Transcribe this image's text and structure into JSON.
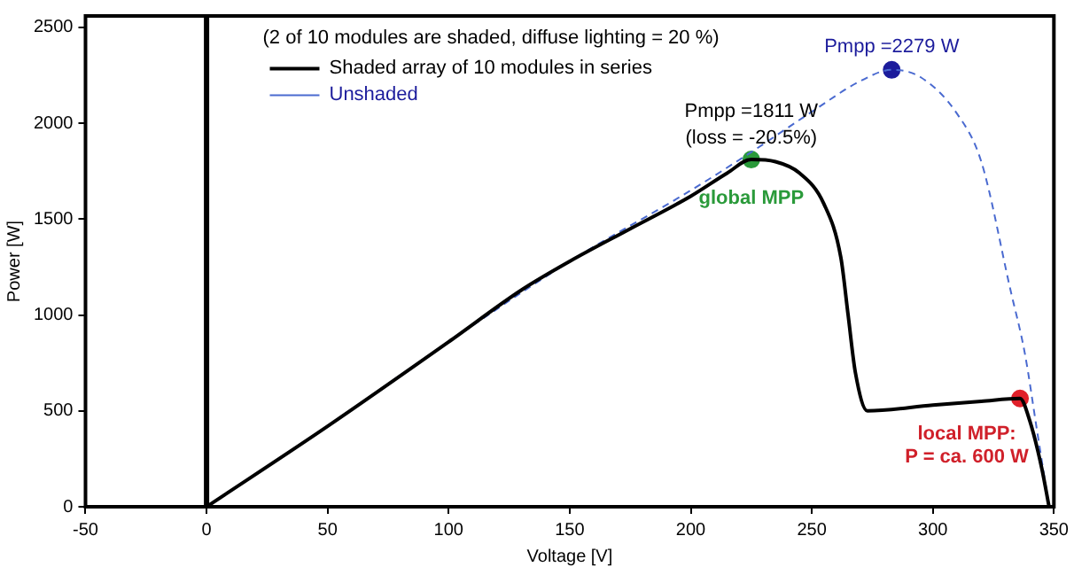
{
  "chart_data": {
    "type": "line",
    "xlabel": "Voltage [V]",
    "ylabel": "Power [W]",
    "legend_title": "(2 of 10 modules are shaded, diffuse lighting = 20 %)",
    "xlim": [
      -50,
      350
    ],
    "xticks": [
      -50,
      0,
      50,
      100,
      150,
      200,
      250,
      300,
      350
    ],
    "ylim": [
      0,
      2560
    ],
    "yticks": [
      0,
      500,
      1000,
      1500,
      2000,
      2500
    ],
    "grid": false,
    "legend": "top left",
    "ref_lines": [
      {
        "axis": "x",
        "value": 0,
        "color": "#000000"
      }
    ],
    "series": [
      {
        "name": "Shaded array of 10 modules in series",
        "color": "#000000",
        "line_style": "solid",
        "marker": "none",
        "x": [
          0,
          50,
          100,
          130,
          150,
          175,
          200,
          215,
          225,
          235,
          245,
          255,
          262,
          265,
          268,
          273,
          300,
          320,
          336,
          340,
          345,
          348
        ],
        "values": [
          0,
          420,
          860,
          1130,
          1280,
          1450,
          1620,
          1740,
          1811,
          1800,
          1740,
          1580,
          1300,
          1000,
          700,
          500,
          530,
          550,
          565,
          450,
          200,
          0
        ]
      },
      {
        "name": "Unshaded",
        "color": "#4a6ad0",
        "line_style": "dashed",
        "marker": "none",
        "x": [
          0,
          50,
          100,
          150,
          200,
          225,
          250,
          270,
          283,
          295,
          310,
          320,
          332,
          338,
          343,
          348
        ],
        "values": [
          0,
          420,
          860,
          1280,
          1650,
          1850,
          2060,
          2220,
          2279,
          2240,
          2050,
          1800,
          1134,
          800,
          400,
          0
        ]
      },
      {
        "type": "scatter",
        "color": "#1c1c9c",
        "marker": "circle",
        "x": [
          283
        ],
        "values": [
          2279
        ]
      },
      {
        "type": "scatter",
        "color": "#2a9a3a",
        "marker": "circle",
        "x": [
          225
        ],
        "values": [
          1811
        ]
      },
      {
        "type": "scatter",
        "color": "#e0202a",
        "marker": "circle",
        "x": [
          336
        ],
        "values": [
          565
        ]
      }
    ],
    "annotations": [
      {
        "text": "Pmpp =2279 W",
        "x": 283,
        "y": 2279
      },
      {
        "text": "Pmpp =1811 W",
        "x": 225,
        "y": 1811
      },
      {
        "text": "(loss = -20.5%)",
        "x": 225,
        "y": 1811
      },
      {
        "text": "global MPP",
        "x": 225,
        "y": 1811
      },
      {
        "text": "local MPP:",
        "x": 336,
        "y": 565
      },
      {
        "text": "P = ca. 600 W",
        "x": 336,
        "y": 565
      }
    ]
  }
}
